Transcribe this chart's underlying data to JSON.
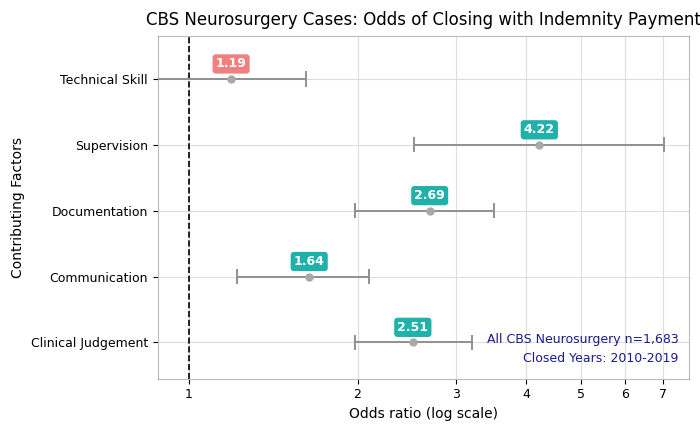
{
  "title": "CBS Neurosurgery Cases: Odds of Closing with Indemnity Payment",
  "xlabel": "Odds ratio (log scale)",
  "ylabel": "Contributing Factors",
  "annotation_line1": "All CBS Neurosurgery n=1,683",
  "annotation_line2": "Closed Years: 2010-2019",
  "categories": [
    "Technical Skill",
    "Supervision",
    "Documentation",
    "Communication",
    "Clinical Judgement"
  ],
  "or_values": [
    1.19,
    4.22,
    2.69,
    1.64,
    2.51
  ],
  "ci_low": [
    0.72,
    2.52,
    1.98,
    1.22,
    1.98
  ],
  "ci_high": [
    1.62,
    7.05,
    3.5,
    2.1,
    3.2
  ],
  "label_colors": [
    "#F08080",
    "#20B2AA",
    "#20B2AA",
    "#20B2AA",
    "#20B2AA"
  ],
  "point_color": "#A9A9A9",
  "line_color": "#909090",
  "xticks": [
    1,
    2,
    3,
    4,
    5,
    6,
    7
  ],
  "dashed_line_x": 1.0,
  "bg_color": "#FFFFFF",
  "grid_color": "#DDDDDD",
  "title_fontsize": 12,
  "axis_label_fontsize": 10,
  "tick_fontsize": 9,
  "annotation_fontsize": 9,
  "label_text_color": "#FFFFFF",
  "label_fontsize": 9,
  "annotation_color": "#1a1a8c"
}
